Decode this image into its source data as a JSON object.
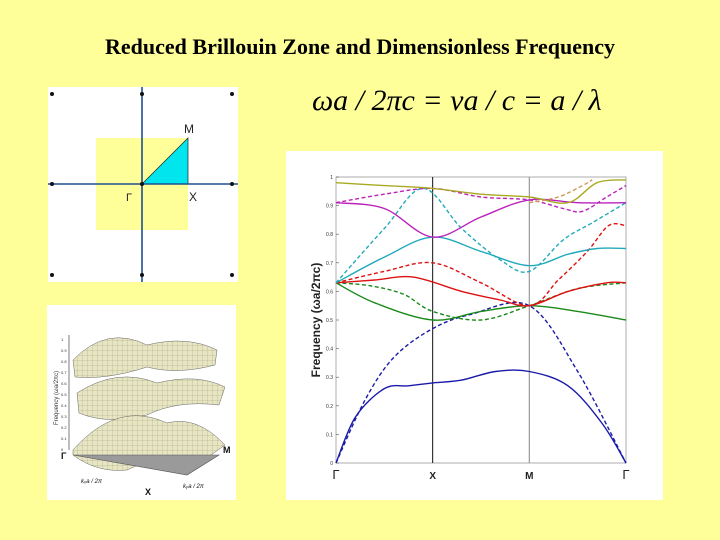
{
  "title": "Reduced Brillouin Zone and Dimensionless Frequency",
  "formula": {
    "terms": [
      "ωa / 2πc",
      "νa / c",
      "a / λ"
    ],
    "equals": "="
  },
  "brillouin_zone": {
    "labels": {
      "gamma": "Γ",
      "x": "X",
      "m": "M"
    },
    "colors": {
      "zone_fill": "#ffff99",
      "irreducible_fill": "#00e5ee",
      "axis": "#1f4f8f"
    }
  },
  "surface_plot": {
    "ylabel": "Frequency (ωa/2πc)",
    "corner_labels": {
      "gamma": "Γ",
      "x": "X",
      "m": "M"
    },
    "kx_label": "kₓa / 2π",
    "ky_label": "kᵧa / 2π",
    "zticks": [
      "0",
      "0.1",
      "0.2",
      "0.3",
      "0.4",
      "0.5",
      "0.6",
      "0.7",
      "0.8",
      "0.9",
      "1"
    ]
  },
  "chart_data": {
    "type": "line",
    "ylabel": "Frequency (ωa/2πc)",
    "xticks": [
      {
        "x": 0,
        "label": "Γ"
      },
      {
        "x": 1,
        "label": "X"
      },
      {
        "x": 2,
        "label": "M"
      },
      {
        "x": 3,
        "label": "Γ"
      }
    ],
    "yticks": [
      "0",
      "0.1",
      "0.2",
      "0.3",
      "0.4",
      "0.5",
      "0.6",
      "0.7",
      "0.8",
      "0.9",
      "1"
    ],
    "ylim": [
      0,
      1
    ],
    "xlim": [
      0,
      3
    ],
    "series": [
      {
        "color": "#1a1aaa",
        "dash": false,
        "points": [
          [
            0,
            0
          ],
          [
            0.2,
            0.16
          ],
          [
            0.5,
            0.26
          ],
          [
            0.75,
            0.27
          ],
          [
            1,
            0.28
          ],
          [
            1.3,
            0.29
          ],
          [
            1.65,
            0.32
          ],
          [
            2,
            0.32
          ],
          [
            2.4,
            0.27
          ],
          [
            2.75,
            0.14
          ],
          [
            3,
            0
          ]
        ]
      },
      {
        "color": "#1a1aaa",
        "dash": true,
        "points": [
          [
            0,
            0
          ],
          [
            0.3,
            0.22
          ],
          [
            0.6,
            0.37
          ],
          [
            1,
            0.47
          ],
          [
            1.4,
            0.52
          ],
          [
            2,
            0.55
          ],
          [
            2.5,
            0.32
          ],
          [
            3,
            0
          ]
        ]
      },
      {
        "color": "#1a8a1a",
        "dash": false,
        "points": [
          [
            0,
            0.63
          ],
          [
            0.4,
            0.56
          ],
          [
            1,
            0.5
          ],
          [
            1.5,
            0.53
          ],
          [
            2,
            0.55
          ],
          [
            2.5,
            0.53
          ],
          [
            3,
            0.5
          ]
        ]
      },
      {
        "color": "#1a8a1a",
        "dash": true,
        "points": [
          [
            0,
            0.63
          ],
          [
            0.35,
            0.62
          ],
          [
            0.7,
            0.59
          ],
          [
            1,
            0.53
          ],
          [
            1.5,
            0.5
          ],
          [
            2,
            0.55
          ],
          [
            2.5,
            0.61
          ],
          [
            3,
            0.63
          ]
        ]
      },
      {
        "color": "#dd1111",
        "dash": false,
        "points": [
          [
            0,
            0.63
          ],
          [
            0.4,
            0.64
          ],
          [
            0.8,
            0.65
          ],
          [
            1.3,
            0.6
          ],
          [
            1.7,
            0.57
          ],
          [
            2,
            0.55
          ],
          [
            2.4,
            0.6
          ],
          [
            2.8,
            0.63
          ],
          [
            3,
            0.63
          ]
        ]
      },
      {
        "color": "#dd1111",
        "dash": true,
        "points": [
          [
            0,
            0.63
          ],
          [
            0.5,
            0.67
          ],
          [
            1,
            0.7
          ],
          [
            1.5,
            0.63
          ],
          [
            2,
            0.55
          ],
          [
            2.3,
            0.64
          ],
          [
            2.6,
            0.74
          ],
          [
            2.82,
            0.83
          ],
          [
            3,
            0.83
          ]
        ]
      },
      {
        "color": "#22aabb",
        "dash": false,
        "points": [
          [
            0,
            0.63
          ],
          [
            0.5,
            0.72
          ],
          [
            1,
            0.79
          ],
          [
            1.5,
            0.74
          ],
          [
            2,
            0.69
          ],
          [
            2.4,
            0.73
          ],
          [
            2.7,
            0.75
          ],
          [
            3,
            0.75
          ]
        ]
      },
      {
        "color": "#22aabb",
        "dash": true,
        "points": [
          [
            0,
            0.63
          ],
          [
            0.5,
            0.82
          ],
          [
            0.9,
            0.96
          ],
          [
            1.3,
            0.82
          ],
          [
            1.7,
            0.71
          ],
          [
            2,
            0.67
          ],
          [
            2.35,
            0.78
          ],
          [
            2.65,
            0.84
          ],
          [
            3,
            0.91
          ]
        ]
      },
      {
        "color": "#bb22bb",
        "dash": false,
        "points": [
          [
            0,
            0.91
          ],
          [
            0.5,
            0.89
          ],
          [
            1,
            0.79
          ],
          [
            1.5,
            0.86
          ],
          [
            2,
            0.92
          ],
          [
            2.5,
            0.91
          ],
          [
            3,
            0.91
          ]
        ]
      },
      {
        "color": "#bb22bb",
        "dash": true,
        "points": [
          [
            0,
            0.91
          ],
          [
            0.5,
            0.94
          ],
          [
            1,
            0.96
          ],
          [
            1.5,
            0.93
          ],
          [
            2,
            0.92
          ],
          [
            2.35,
            0.89
          ],
          [
            2.55,
            0.88
          ],
          [
            2.8,
            0.93
          ],
          [
            3,
            0.97
          ]
        ]
      },
      {
        "color": "#aaaa22",
        "dash": false,
        "points": [
          [
            0,
            0.98
          ],
          [
            0.5,
            0.97
          ],
          [
            1,
            0.96
          ],
          [
            1.5,
            0.94
          ],
          [
            2,
            0.93
          ],
          [
            2.4,
            0.91
          ],
          [
            2.7,
            0.98
          ],
          [
            3,
            0.99
          ]
        ]
      },
      {
        "color": "#cc9955",
        "dash": true,
        "points": [
          [
            2,
            0.91
          ],
          [
            2.3,
            0.93
          ],
          [
            2.55,
            0.97
          ],
          [
            2.65,
            0.99
          ]
        ]
      }
    ]
  }
}
